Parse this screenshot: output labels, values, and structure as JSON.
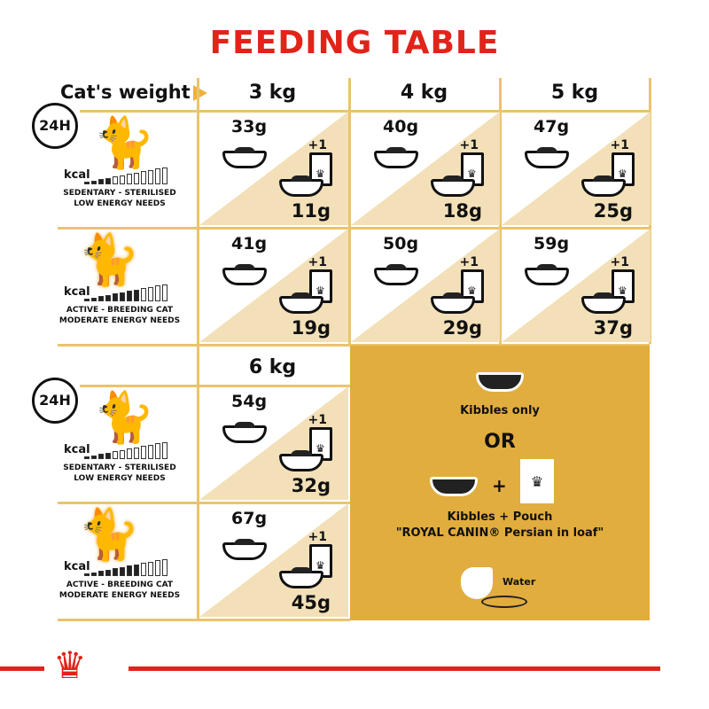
{
  "title": "FEEDING TABLE",
  "weight_label": "Cat's weight",
  "weights": [
    "3 kg",
    "4 kg",
    "5 kg",
    "6 kg"
  ],
  "clock_label": "24H",
  "kcal_label": "kcal",
  "profiles": {
    "sedentary": {
      "line1": "SEDENTARY - STERILISED",
      "line2": "LOW ENERGY NEEDS"
    },
    "active": {
      "line1": "ACTIVE - BREEDING CAT",
      "line2": "MODERATE ENERGY NEEDS"
    }
  },
  "pouch_label": "+1",
  "cells": [
    {
      "weight": "3 kg",
      "profile": "sedentary",
      "kibbles_only": "33g",
      "kibbles_with_pouch": "11g"
    },
    {
      "weight": "4 kg",
      "profile": "sedentary",
      "kibbles_only": "40g",
      "kibbles_with_pouch": "18g"
    },
    {
      "weight": "5 kg",
      "profile": "sedentary",
      "kibbles_only": "47g",
      "kibbles_with_pouch": "25g"
    },
    {
      "weight": "3 kg",
      "profile": "active",
      "kibbles_only": "41g",
      "kibbles_with_pouch": "19g"
    },
    {
      "weight": "4 kg",
      "profile": "active",
      "kibbles_only": "50g",
      "kibbles_with_pouch": "29g"
    },
    {
      "weight": "5 kg",
      "profile": "active",
      "kibbles_only": "59g",
      "kibbles_with_pouch": "37g"
    },
    {
      "weight": "6 kg",
      "profile": "sedentary",
      "kibbles_only": "54g",
      "kibbles_with_pouch": "32g"
    },
    {
      "weight": "6 kg",
      "profile": "active",
      "kibbles_only": "67g",
      "kibbles_with_pouch": "45g"
    }
  ],
  "legend": {
    "kibbles_only": "Kibbles only",
    "or": "OR",
    "plus": "+",
    "kibbles_pouch": "Kibbles + Pouch",
    "product": "\"ROYAL CANIN® Persian in loaf\"",
    "water": "Water"
  },
  "colors": {
    "brand_red": "#e2231a",
    "panel": "#e1ad3e",
    "grid": "#eac46c",
    "triangle": "#f3e0b8"
  }
}
